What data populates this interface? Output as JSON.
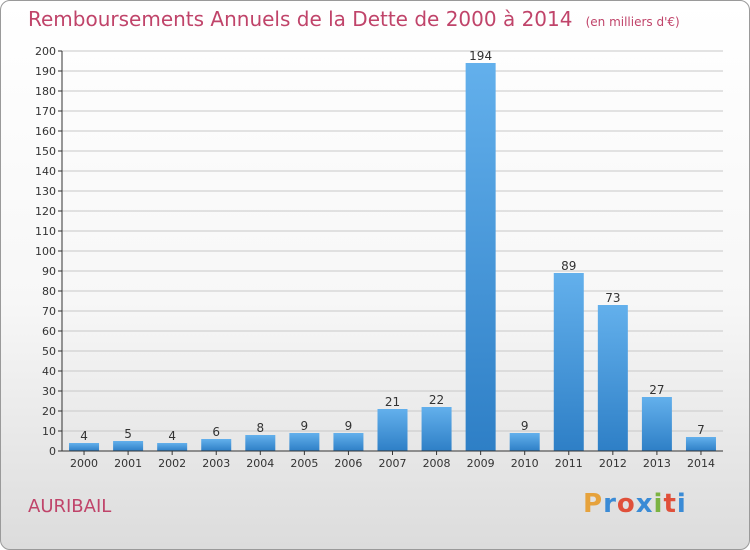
{
  "page": {
    "title": "Remboursements Annuels de la Dette de 2000 à 2014",
    "subtitle": "(en milliers d'€)",
    "commune": "AURIBAIL",
    "logo": {
      "text": "Proxiti",
      "letters": [
        "P",
        "r",
        "o",
        "x",
        "i",
        "t",
        "i"
      ],
      "colors": [
        "#e6a23c",
        "#3a8bd6",
        "#e0503a",
        "#3a8bd6",
        "#7cb342",
        "#e0503a",
        "#3a8bd6"
      ]
    }
  },
  "colors": {
    "title": "#c0446a",
    "bar": "#3d8fd6",
    "bar_light": "#63b0ec",
    "grid": "#c8c8c8",
    "axis": "#333333"
  },
  "chart_data": {
    "type": "bar",
    "title": "Remboursements Annuels de la Dette de 2000 à 2014",
    "subtitle": "(en milliers d'€)",
    "categories": [
      "2000",
      "2001",
      "2002",
      "2003",
      "2004",
      "2005",
      "2006",
      "2007",
      "2008",
      "2009",
      "2010",
      "2011",
      "2012",
      "2013",
      "2014"
    ],
    "values": [
      4,
      5,
      4,
      6,
      8,
      9,
      9,
      21,
      22,
      194,
      9,
      89,
      73,
      27,
      7
    ],
    "ylim": [
      0,
      200
    ],
    "yticks": [
      0,
      10,
      20,
      30,
      40,
      50,
      60,
      70,
      80,
      90,
      100,
      110,
      120,
      130,
      140,
      150,
      160,
      170,
      180,
      190,
      200
    ],
    "grid": true,
    "legend": "none"
  }
}
